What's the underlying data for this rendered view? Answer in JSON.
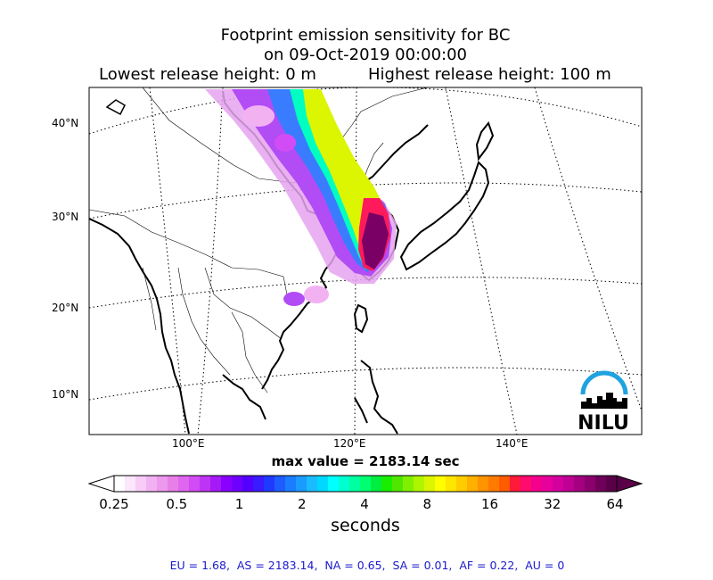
{
  "title": {
    "line1": "Footprint emission sensitivity for BC",
    "line2": "on 09-Oct-2019 00:00:00",
    "lowest_release": "Lowest release height: 0 m",
    "highest_release": "Highest release height: 100 m"
  },
  "map": {
    "lat_labels": [
      "40°N",
      "30°N",
      "20°N",
      "10°N"
    ],
    "lon_labels": [
      "100°E",
      "120°E",
      "140°E"
    ],
    "logo_text": "NILU",
    "logo_color": "#1fa3e0"
  },
  "max_value": "max value = 2183.14 sec",
  "colorbar": {
    "ticks": [
      "0.25",
      "0.5",
      "1",
      "2",
      "4",
      "8",
      "16",
      "32",
      "64"
    ],
    "label": "seconds",
    "colors": [
      "#ffffff",
      "#fbe6fb",
      "#f7ccf7",
      "#f2b2f2",
      "#ed99ed",
      "#e87fe8",
      "#e066f0",
      "#d24cf5",
      "#bf33f7",
      "#a51af7",
      "#8a00ff",
      "#6f00ff",
      "#5400ff",
      "#3a1aff",
      "#1f3aff",
      "#1f5cff",
      "#1a7cff",
      "#1a9cff",
      "#1abcff",
      "#00d8ff",
      "#00ffff",
      "#00ffd0",
      "#00ffa0",
      "#00ff70",
      "#00ee40",
      "#1aee00",
      "#50e600",
      "#80f000",
      "#b0f500",
      "#dcf500",
      "#ffff00",
      "#ffe600",
      "#ffcc00",
      "#ffb000",
      "#ff9400",
      "#ff7a00",
      "#ff5c00",
      "#ff1a3a",
      "#ff0a6e",
      "#f5008c",
      "#e6009c",
      "#d4009e",
      "#bf0094",
      "#a50080",
      "#8c006e",
      "#6e005a",
      "#5a0048"
    ]
  },
  "footer": "EU = 1.68,  AS = 2183.14,  NA = 0.65,  SA = 0.01,  AF = 0.22,  AU = 0"
}
